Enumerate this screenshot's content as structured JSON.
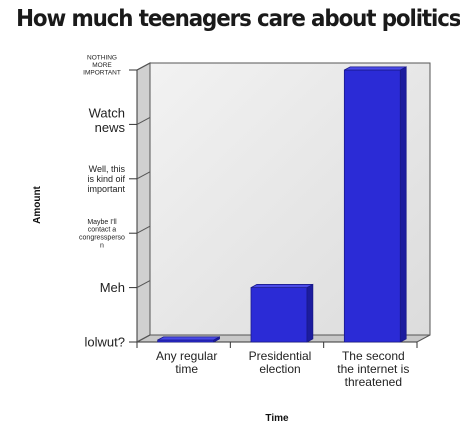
{
  "chart_data": {
    "type": "bar",
    "title": "How much teenagers care about politics",
    "xlabel": "Time",
    "ylabel": "Amount",
    "y_levels": [
      "lolwut?",
      "Meh",
      "Maybe I'll contact a congressperson",
      "Well, this is kind oif important",
      "Watch news",
      "NOTHING MORE IMPORTANT"
    ],
    "ylim": [
      0,
      5
    ],
    "categories": [
      "Any regular time",
      "Presidential election",
      "The second the internet is threatened"
    ],
    "values": [
      0,
      1,
      5
    ],
    "bar_color": "#2b2bd6",
    "grid": false,
    "style": "3d"
  }
}
